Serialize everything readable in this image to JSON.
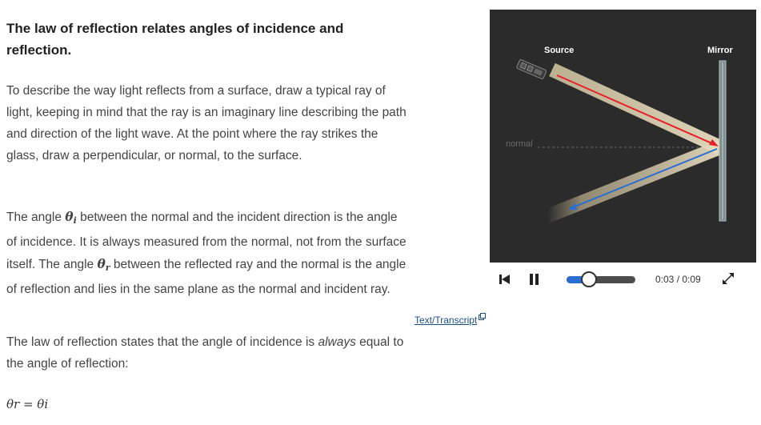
{
  "content": {
    "heading": "The law of reflection relates angles of incidence and reflection.",
    "paragraph1": "To describe the way light reflects from a surface, draw a typical ray of light, keeping in mind that the ray is an imaginary line describing the path and direction of the light wave. At the point where the ray strikes the glass, draw a perpendicular, or normal, to the surface.",
    "paragraph2": {
      "t1": "The angle ",
      "theta_i_sym": "θ",
      "theta_i_sub": "i",
      "t2": " between the normal and the incident direction is the angle of incidence. It is always measured from the normal, not from the surface itself. The angle ",
      "theta_r_sym": "θ",
      "theta_r_sub": "r",
      "t3": " between the reflected ray and the normal is the angle of reflection and lies in the same plane as the normal and incident ray."
    },
    "paragraph3": {
      "t1": "The law of reflection states that the angle of incidence is ",
      "emph": "always",
      "t2": " equal to the angle of reflection:"
    },
    "equation": "θr = θi"
  },
  "transcript_link": "Text/Transcript",
  "video": {
    "labels": {
      "source": "Source",
      "mirror": "Mirror",
      "normal": "normal"
    },
    "player": {
      "current_time": "0:03",
      "duration": "0:09",
      "time_display": "0:03 / 0:09",
      "progress": 0.33
    },
    "colors": {
      "incident_ray": "#e8202a",
      "reflected_ray": "#2a6ed1",
      "beam": "#d9c9a3",
      "accent": "#2a6ed1"
    }
  }
}
